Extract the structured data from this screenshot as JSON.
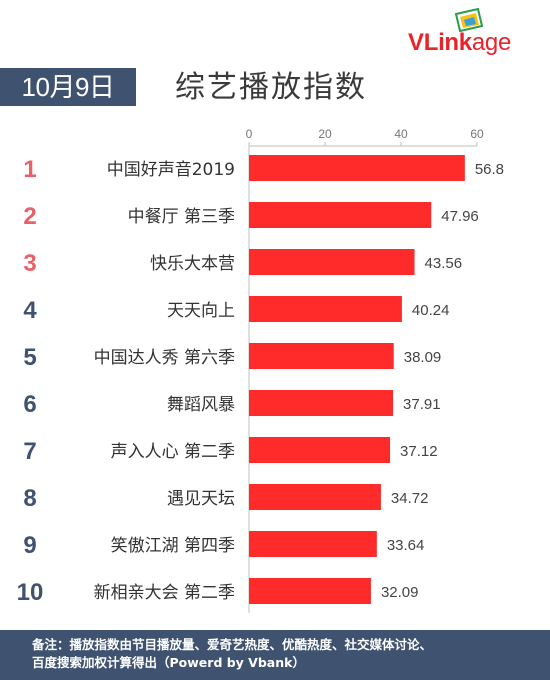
{
  "logo": {
    "text_part1": "VLink",
    "text_part2": "age",
    "accent": "#e8232a"
  },
  "date_badge": "10月9日",
  "title": "综艺播放指数",
  "footer": {
    "line1": "备注：播放指数由节目播放量、爱奇艺热度、优酷热度、社交媒体讨论、",
    "line2": "百度搜索加权计算得出（Powerd by Vbank）"
  },
  "colors": {
    "bar": "#ff2a2a",
    "rank_top": "#e8606a",
    "rank_other": "#3f5370",
    "header_bg": "#3f5370"
  },
  "chart_data": {
    "type": "bar",
    "orientation": "horizontal",
    "title": "综艺播放指数",
    "xlim": [
      0,
      60
    ],
    "x_ticks": [
      0,
      20,
      40,
      60
    ],
    "ranks": [
      "1",
      "2",
      "3",
      "4",
      "5",
      "6",
      "7",
      "8",
      "9",
      "10"
    ],
    "categories": [
      "中国好声音2019",
      "中餐厅 第三季",
      "快乐大本营",
      "天天向上",
      "中国达人秀 第六季",
      "舞蹈风暴",
      "声入人心 第二季",
      "遇见天坛",
      "笑傲江湖 第四季",
      "新相亲大会 第二季"
    ],
    "values": [
      56.8,
      47.96,
      43.56,
      40.24,
      38.09,
      37.91,
      37.12,
      34.72,
      33.64,
      32.09
    ],
    "value_labels": [
      "56.8",
      "47.96",
      "43.56",
      "40.24",
      "38.09",
      "37.91",
      "37.12",
      "34.72",
      "33.64",
      "32.09"
    ],
    "grid": false,
    "legend": "none"
  }
}
